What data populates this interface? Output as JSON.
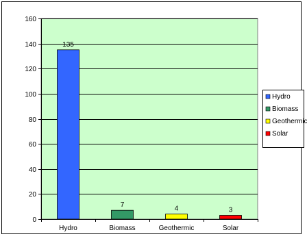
{
  "chart_data": {
    "type": "bar",
    "categories": [
      "Hydro",
      "Biomass",
      "Geothermic",
      "Solar"
    ],
    "values": [
      135,
      7,
      4,
      3
    ],
    "data_labels": [
      "135",
      "7",
      "4",
      "3"
    ],
    "colors": [
      "#3366ff",
      "#339966",
      "#ffff00",
      "#ff0000"
    ],
    "plot_background": "#ccffcc",
    "ylim": [
      0,
      160
    ],
    "yticks": [
      0,
      20,
      40,
      60,
      80,
      100,
      120,
      140,
      160
    ],
    "grid": true,
    "legend": {
      "placement": "right",
      "entries": [
        "Hydro",
        "Biomass",
        "Geothermic",
        "Solar"
      ]
    },
    "title": "",
    "xlabel": "",
    "ylabel": ""
  }
}
